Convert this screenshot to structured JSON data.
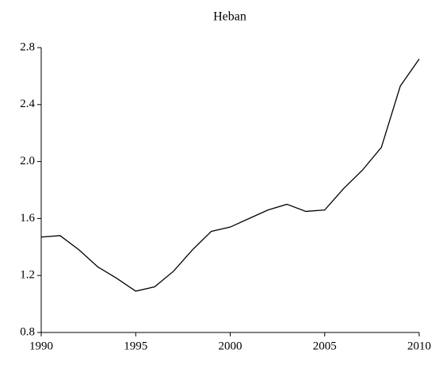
{
  "chart_data": {
    "type": "line",
    "title": "Heban",
    "x": [
      1990,
      1991,
      1992,
      1993,
      1994,
      1995,
      1996,
      1997,
      1998,
      1999,
      2000,
      2001,
      2002,
      2003,
      2004,
      2005,
      2006,
      2007,
      2008,
      2009,
      2010
    ],
    "series": [
      {
        "color": "#000000",
        "values": [
          1.47,
          1.48,
          1.38,
          1.26,
          1.18,
          1.09,
          1.12,
          1.23,
          1.38,
          1.51,
          1.54,
          1.6,
          1.66,
          1.7,
          1.65,
          1.66,
          1.81,
          1.94,
          2.1,
          2.53,
          2.72
        ]
      }
    ],
    "xlim": [
      1990,
      2010
    ],
    "xticks": [
      1990,
      1995,
      2000,
      2005,
      2010
    ],
    "ylim": [
      0.8,
      2.8
    ],
    "yticks": [
      0.8,
      1.2,
      1.6,
      {
        "value": 2,
        "label": "2.0"
      },
      2.4,
      2.8
    ]
  }
}
